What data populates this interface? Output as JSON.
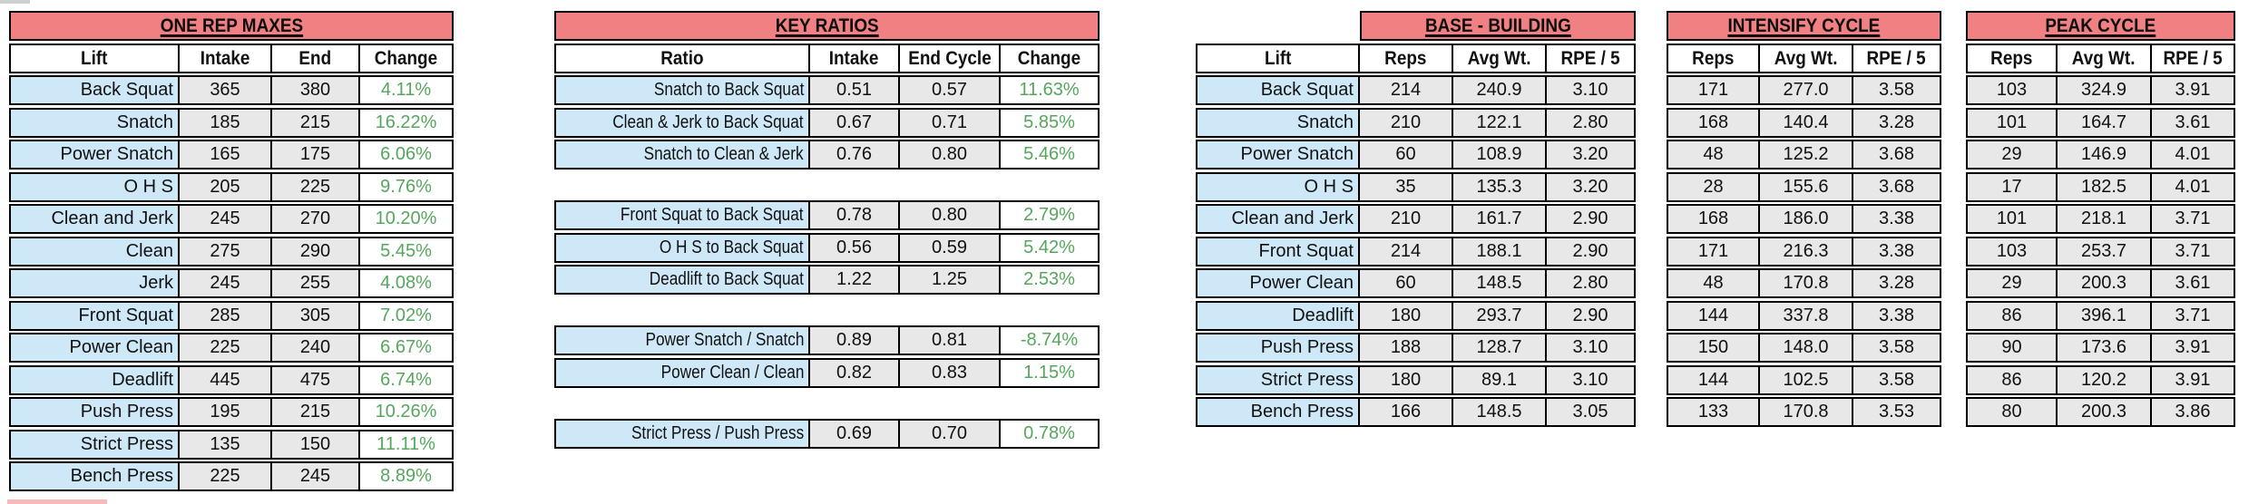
{
  "colors": {
    "header_red": "#F08082",
    "lift_blue": "#CFE8F7",
    "value_gray": "#E8E8E8",
    "change_green": "#56A65E",
    "border_black": "#000000"
  },
  "one_rep_maxes": {
    "title": "ONE REP MAXES",
    "columns": [
      "Lift",
      "Intake",
      "End",
      "Change"
    ],
    "rows": [
      {
        "lift": "Back Squat",
        "intake": "365",
        "end": "380",
        "change": "4.11%"
      },
      {
        "lift": "Snatch",
        "intake": "185",
        "end": "215",
        "change": "16.22%"
      },
      {
        "lift": "Power Snatch",
        "intake": "165",
        "end": "175",
        "change": "6.06%"
      },
      {
        "lift": "O H S",
        "intake": "205",
        "end": "225",
        "change": "9.76%"
      },
      {
        "lift": "Clean and Jerk",
        "intake": "245",
        "end": "270",
        "change": "10.20%"
      },
      {
        "lift": "Clean",
        "intake": "275",
        "end": "290",
        "change": "5.45%"
      },
      {
        "lift": "Jerk",
        "intake": "245",
        "end": "255",
        "change": "4.08%"
      },
      {
        "lift": "Front Squat",
        "intake": "285",
        "end": "305",
        "change": "7.02%"
      },
      {
        "lift": "Power Clean",
        "intake": "225",
        "end": "240",
        "change": "6.67%"
      },
      {
        "lift": "Deadlift",
        "intake": "445",
        "end": "475",
        "change": "6.74%"
      },
      {
        "lift": "Push Press",
        "intake": "195",
        "end": "215",
        "change": "10.26%"
      },
      {
        "lift": "Strict Press",
        "intake": "135",
        "end": "150",
        "change": "11.11%"
      },
      {
        "lift": "Bench Press",
        "intake": "225",
        "end": "245",
        "change": "8.89%"
      }
    ]
  },
  "key_ratios": {
    "title": "KEY RATIOS",
    "columns": [
      "Ratio",
      "Intake",
      "End Cycle",
      "Change"
    ],
    "groups": [
      [
        {
          "ratio": "Snatch to Back Squat",
          "intake": "0.51",
          "end_cycle": "0.57",
          "change": "11.63%"
        },
        {
          "ratio": "Clean & Jerk to Back Squat",
          "intake": "0.67",
          "end_cycle": "0.71",
          "change": "5.85%"
        },
        {
          "ratio": "Snatch to Clean & Jerk",
          "intake": "0.76",
          "end_cycle": "0.80",
          "change": "5.46%"
        }
      ],
      [
        {
          "ratio": "Front Squat to Back Squat",
          "intake": "0.78",
          "end_cycle": "0.80",
          "change": "2.79%"
        },
        {
          "ratio": "O H S to Back Squat",
          "intake": "0.56",
          "end_cycle": "0.59",
          "change": "5.42%"
        },
        {
          "ratio": "Deadlift to Back Squat",
          "intake": "1.22",
          "end_cycle": "1.25",
          "change": "2.53%"
        }
      ],
      [
        {
          "ratio": "Power Snatch / Snatch",
          "intake": "0.89",
          "end_cycle": "0.81",
          "change": "-8.74%"
        },
        {
          "ratio": "Power Clean / Clean",
          "intake": "0.82",
          "end_cycle": "0.83",
          "change": "1.15%"
        }
      ],
      [
        {
          "ratio": "Strict Press / Push Press",
          "intake": "0.69",
          "end_cycle": "0.70",
          "change": "0.78%"
        }
      ]
    ]
  },
  "base_building": {
    "title": "BASE - BUILDING",
    "columns": [
      "Lift",
      "Reps",
      "Avg Wt.",
      "RPE / 5"
    ],
    "rows": [
      {
        "lift": "Back Squat",
        "reps": "214",
        "avg_wt": "240.9",
        "rpe": "3.10"
      },
      {
        "lift": "Snatch",
        "reps": "210",
        "avg_wt": "122.1",
        "rpe": "2.80"
      },
      {
        "lift": "Power Snatch",
        "reps": "60",
        "avg_wt": "108.9",
        "rpe": "3.20"
      },
      {
        "lift": "O H S",
        "reps": "35",
        "avg_wt": "135.3",
        "rpe": "3.20"
      },
      {
        "lift": "Clean and Jerk",
        "reps": "210",
        "avg_wt": "161.7",
        "rpe": "2.90"
      },
      {
        "lift": "Front Squat",
        "reps": "214",
        "avg_wt": "188.1",
        "rpe": "2.90"
      },
      {
        "lift": "Power Clean",
        "reps": "60",
        "avg_wt": "148.5",
        "rpe": "2.80"
      },
      {
        "lift": "Deadlift",
        "reps": "180",
        "avg_wt": "293.7",
        "rpe": "2.90"
      },
      {
        "lift": "Push Press",
        "reps": "188",
        "avg_wt": "128.7",
        "rpe": "3.10"
      },
      {
        "lift": "Strict Press",
        "reps": "180",
        "avg_wt": "89.1",
        "rpe": "3.10"
      },
      {
        "lift": "Bench Press",
        "reps": "166",
        "avg_wt": "148.5",
        "rpe": "3.05"
      }
    ]
  },
  "intensify_cycle": {
    "title": "INTENSIFY CYCLE",
    "columns": [
      "Reps",
      "Avg Wt.",
      "RPE / 5"
    ],
    "rows": [
      {
        "reps": "171",
        "avg_wt": "277.0",
        "rpe": "3.58"
      },
      {
        "reps": "168",
        "avg_wt": "140.4",
        "rpe": "3.28"
      },
      {
        "reps": "48",
        "avg_wt": "125.2",
        "rpe": "3.68"
      },
      {
        "reps": "28",
        "avg_wt": "155.6",
        "rpe": "3.68"
      },
      {
        "reps": "168",
        "avg_wt": "186.0",
        "rpe": "3.38"
      },
      {
        "reps": "171",
        "avg_wt": "216.3",
        "rpe": "3.38"
      },
      {
        "reps": "48",
        "avg_wt": "170.8",
        "rpe": "3.28"
      },
      {
        "reps": "144",
        "avg_wt": "337.8",
        "rpe": "3.38"
      },
      {
        "reps": "150",
        "avg_wt": "148.0",
        "rpe": "3.58"
      },
      {
        "reps": "144",
        "avg_wt": "102.5",
        "rpe": "3.58"
      },
      {
        "reps": "133",
        "avg_wt": "170.8",
        "rpe": "3.53"
      }
    ]
  },
  "peak_cycle": {
    "title": "PEAK CYCLE",
    "columns": [
      "Reps",
      "Avg Wt.",
      "RPE / 5"
    ],
    "rows": [
      {
        "reps": "103",
        "avg_wt": "324.9",
        "rpe": "3.91"
      },
      {
        "reps": "101",
        "avg_wt": "164.7",
        "rpe": "3.61"
      },
      {
        "reps": "29",
        "avg_wt": "146.9",
        "rpe": "4.01"
      },
      {
        "reps": "17",
        "avg_wt": "182.5",
        "rpe": "4.01"
      },
      {
        "reps": "101",
        "avg_wt": "218.1",
        "rpe": "3.71"
      },
      {
        "reps": "103",
        "avg_wt": "253.7",
        "rpe": "3.71"
      },
      {
        "reps": "29",
        "avg_wt": "200.3",
        "rpe": "3.61"
      },
      {
        "reps": "86",
        "avg_wt": "396.1",
        "rpe": "3.71"
      },
      {
        "reps": "90",
        "avg_wt": "173.6",
        "rpe": "3.91"
      },
      {
        "reps": "86",
        "avg_wt": "120.2",
        "rpe": "3.91"
      },
      {
        "reps": "80",
        "avg_wt": "200.3",
        "rpe": "3.86"
      }
    ]
  }
}
